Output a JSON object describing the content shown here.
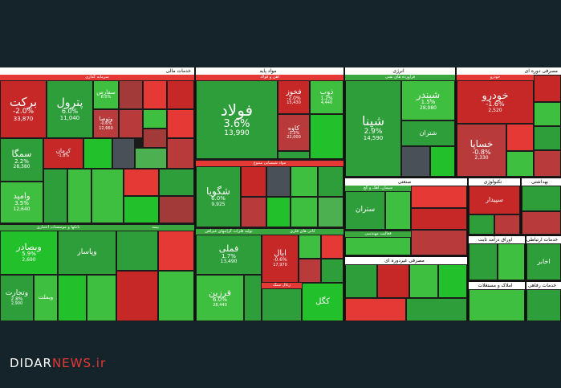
{
  "brand": {
    "part1": "DIDAR",
    "part2": "NEWS.ir"
  },
  "sections": {
    "financial": "خدمات مالی",
    "investment": "سرمایه گذاری",
    "banks": "بانکها و موسسات اعتباری",
    "insurance": "بیمه",
    "base": "مواد پایه",
    "iron": "آهن و فولاد",
    "chemical": "مواد شیمیایی متنوع",
    "basic_metals": "تولید فلزات گرانبهای غیرآهن",
    "metal_mining": "کانی های فلزی",
    "non_metal": "زغال سنگ",
    "energy": "انرژی",
    "refinery": "فراورده های نفتی",
    "industrial": "صنعتی",
    "cement": "سیمان، آهک و گچ",
    "engineering": "فعالیت مهندسی",
    "consumer_cyclic": "مصرفی دوره ای",
    "auto": "خودرو",
    "consumer_noncyclic": "مصرفی غیردوره ای",
    "tech": "تکنولوژی",
    "telecom": "اوراق درآمد ثابت",
    "health": "بهداشتی",
    "comm": "خدمات ارتباطی",
    "realestate": "املاک و مستغلات",
    "utility": "خدمات رفاهی"
  },
  "tiles": {
    "barkat": {
      "name": "برکت",
      "pct": "-2.0%",
      "vol": "33,870"
    },
    "petrol": {
      "name": "پترول",
      "pct": "6.0%",
      "vol": "11,040"
    },
    "simga": {
      "name": "سمگا",
      "pct": "2.2%",
      "vol": "28,380"
    },
    "vamid": {
      "name": "وامید",
      "pct": "3.5%",
      "vol": "12,640"
    },
    "kerman": {
      "name": "کرمان",
      "pct": "-1.8%",
      "vol": ""
    },
    "sefars": {
      "name": "سفارس",
      "pct": "6.0%",
      "vol": ""
    },
    "vatousa": {
      "name": "وتوصا",
      "pct": "-0.6%",
      "vol": "12,660"
    },
    "vesadr": {
      "name": "وبصادر",
      "pct": "5.9%",
      "vol": "2,690"
    },
    "vtejarat": {
      "name": "وتجارت",
      "pct": "2.8%",
      "vol": "2,900"
    },
    "vebmelat": {
      "name": "وبملت",
      "pct": "",
      "vol": ""
    },
    "vpasar": {
      "name": "وپاسار",
      "pct": "",
      "vol": ""
    },
    "fulad": {
      "name": "فولاد",
      "pct": "3.6%",
      "vol": "13,990"
    },
    "fakhooz": {
      "name": "فخوز",
      "pct": "-2.0%",
      "vol": "15,430"
    },
    "zob": {
      "name": "ذوب",
      "pct": "1.2%",
      "vol": "4,440"
    },
    "kaveh": {
      "name": "کاوه",
      "pct": "-1.3%",
      "vol": "22,000"
    },
    "shegoya": {
      "name": "شگویا",
      "pct": "6.0%",
      "vol": "9,925"
    },
    "fameli": {
      "name": "فملی",
      "pct": "1.7%",
      "vol": "13,490"
    },
    "farzin": {
      "name": "فرزین",
      "pct": "6.0%",
      "vol": "28,440"
    },
    "abal": {
      "name": "ابال",
      "pct": "-0.6%",
      "vol": "17,970"
    },
    "kegol": {
      "name": "کگل",
      "pct": "",
      "vol": ""
    },
    "shbandar": {
      "name": "شبندر",
      "pct": "1.5%",
      "vol": "28,980"
    },
    "shpna": {
      "name": "شپنا",
      "pct": "2.9%",
      "vol": "14,590"
    },
    "shtran": {
      "name": "شتران",
      "pct": "",
      "vol": ""
    },
    "khodro": {
      "name": "خودرو",
      "pct": "-1.6%",
      "vol": "2,520"
    },
    "khsapa": {
      "name": "خساپا",
      "pct": "-0.8%",
      "vol": "2,330"
    },
    "setran": {
      "name": "ستران",
      "pct": "",
      "vol": ""
    },
    "sepidar": {
      "name": "سپیدار",
      "pct": "",
      "vol": ""
    },
    "akhabar": {
      "name": "اخابر",
      "pct": "",
      "vol": ""
    }
  },
  "colors": {
    "up": "#2e9e3b",
    "down": "#c62828",
    "neutral": "#4a5057",
    "bg": "#15242b"
  }
}
